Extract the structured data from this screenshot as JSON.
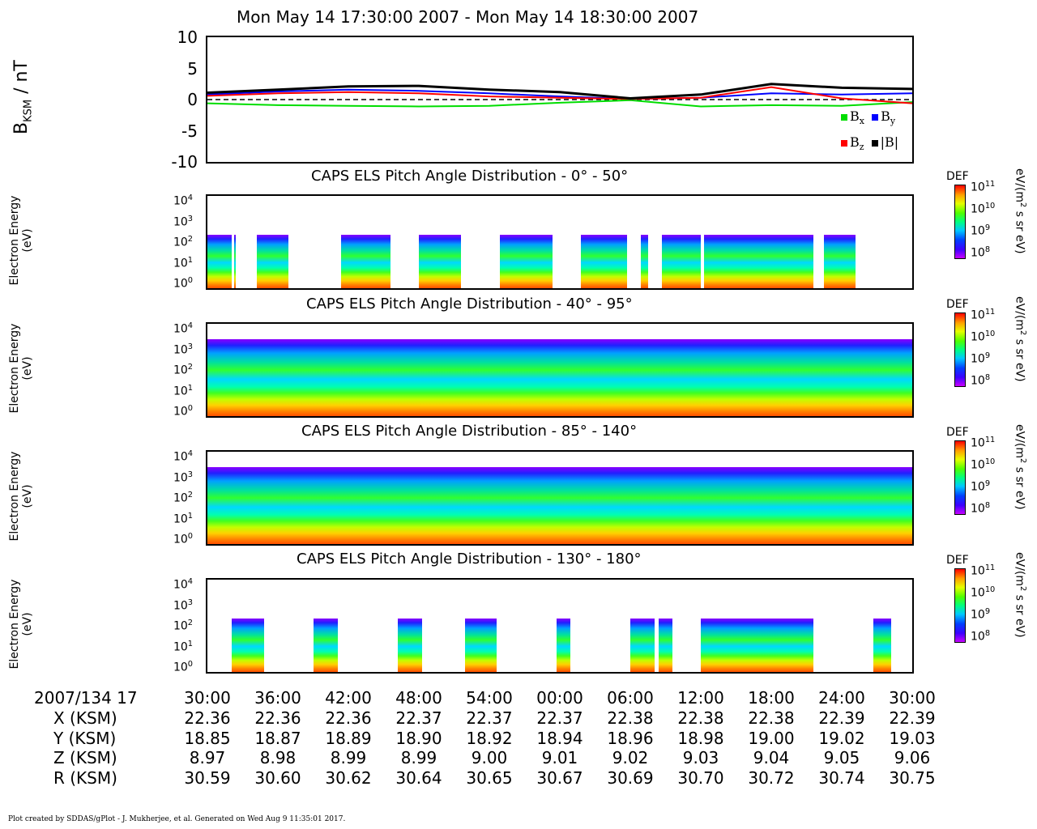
{
  "title": "Mon May 14 17:30:00 2007 - Mon May 14 18:30:00 2007",
  "footer": "Plot created by SDDAS/gPlot - J. Mukherjee, et al.  Generated on Wed Aug 9 11:35:01 2017.",
  "colors": {
    "bx": "#00dd00",
    "by": "#0000ff",
    "bz": "#ff0000",
    "btot": "#000000"
  },
  "chart_data": [
    {
      "type": "line",
      "ylabel_main": "B",
      "ylabel_sub": "KSM",
      "ylabel_unit": " / nT",
      "ylim": [
        -10,
        10
      ],
      "yticks": [
        "10",
        "5",
        "0",
        "-5",
        "-10"
      ],
      "x": [
        "30:00",
        "36:00",
        "42:00",
        "48:00",
        "54:00",
        "00:00",
        "06:00",
        "12:00",
        "18:00",
        "24:00",
        "30:00"
      ],
      "legend": [
        "Bx",
        "By",
        "Bz",
        "|B|"
      ],
      "series": [
        {
          "name": "Bx",
          "values": [
            -0.6,
            -0.9,
            -1.0,
            -1.1,
            -1.0,
            -0.5,
            -0.1,
            -1.1,
            -0.9,
            -1.0,
            -0.4
          ]
        },
        {
          "name": "By",
          "values": [
            0.8,
            1.3,
            1.6,
            1.4,
            1.0,
            0.5,
            0.1,
            0.3,
            1.0,
            0.8,
            1.0
          ]
        },
        {
          "name": "Bz",
          "values": [
            0.6,
            1.0,
            1.2,
            1.0,
            0.5,
            0.3,
            0.1,
            0.3,
            2.0,
            0.2,
            -0.6
          ]
        },
        {
          "name": "|B|",
          "values": [
            1.1,
            1.6,
            2.1,
            2.2,
            1.6,
            1.2,
            0.2,
            0.8,
            2.5,
            1.9,
            1.7
          ]
        }
      ]
    },
    {
      "type": "heatmap",
      "title": "CAPS ELS Pitch Angle Distribution - 0° - 50°",
      "ylabel": [
        "Electron Energy",
        "(eV)"
      ],
      "yticks": [
        "10^4",
        "10^3",
        "10^2",
        "10^1",
        "10^0"
      ],
      "colorbar": {
        "label": "DEF",
        "unit": "eV/(m^2 s sr eV)",
        "ticks": [
          "10^11",
          "10^10",
          "10^9",
          "10^8"
        ]
      }
    },
    {
      "type": "heatmap",
      "title": "CAPS ELS Pitch Angle Distribution - 40° - 95°",
      "ylabel": [
        "Electron Energy",
        "(eV)"
      ],
      "yticks": [
        "10^4",
        "10^3",
        "10^2",
        "10^1",
        "10^0"
      ],
      "colorbar": {
        "label": "DEF",
        "unit": "eV/(m^2 s sr eV)",
        "ticks": [
          "10^11",
          "10^10",
          "10^9",
          "10^8"
        ]
      }
    },
    {
      "type": "heatmap",
      "title": "CAPS ELS Pitch Angle Distribution - 85° - 140°",
      "ylabel": [
        "Electron Energy",
        "(eV)"
      ],
      "yticks": [
        "10^4",
        "10^3",
        "10^2",
        "10^1",
        "10^0"
      ],
      "colorbar": {
        "label": "DEF",
        "unit": "eV/(m^2 s sr eV)",
        "ticks": [
          "10^11",
          "10^10",
          "10^9",
          "10^8"
        ]
      }
    },
    {
      "type": "heatmap",
      "title": "CAPS ELS Pitch Angle Distribution - 130° - 180°",
      "ylabel": [
        "Electron Energy",
        "(eV)"
      ],
      "yticks": [
        "10^4",
        "10^3",
        "10^2",
        "10^1",
        "10^0"
      ],
      "colorbar": {
        "label": "DEF",
        "unit": "eV/(m^2 s sr eV)",
        "ticks": [
          "10^11",
          "10^10",
          "10^9",
          "10^8"
        ]
      }
    }
  ],
  "ephemeris": {
    "time_label": "2007/134 17",
    "times": [
      "30:00",
      "36:00",
      "42:00",
      "48:00",
      "54:00",
      "00:00",
      "06:00",
      "12:00",
      "18:00",
      "24:00",
      "30:00"
    ],
    "rows": [
      {
        "label": "X (KSM)",
        "values": [
          "22.36",
          "22.36",
          "22.36",
          "22.37",
          "22.37",
          "22.37",
          "22.38",
          "22.38",
          "22.38",
          "22.39",
          "22.39"
        ]
      },
      {
        "label": "Y (KSM)",
        "values": [
          "18.85",
          "18.87",
          "18.89",
          "18.90",
          "18.92",
          "18.94",
          "18.96",
          "18.98",
          "19.00",
          "19.02",
          "19.03"
        ]
      },
      {
        "label": "Z (KSM)",
        "values": [
          "8.97",
          "8.98",
          "8.99",
          "8.99",
          "9.00",
          "9.01",
          "9.02",
          "9.03",
          "9.04",
          "9.05",
          "9.06"
        ]
      },
      {
        "label": "R (KSM)",
        "values": [
          "30.59",
          "30.60",
          "30.62",
          "30.64",
          "30.65",
          "30.67",
          "30.69",
          "30.70",
          "30.72",
          "30.74",
          "30.75"
        ]
      }
    ]
  }
}
